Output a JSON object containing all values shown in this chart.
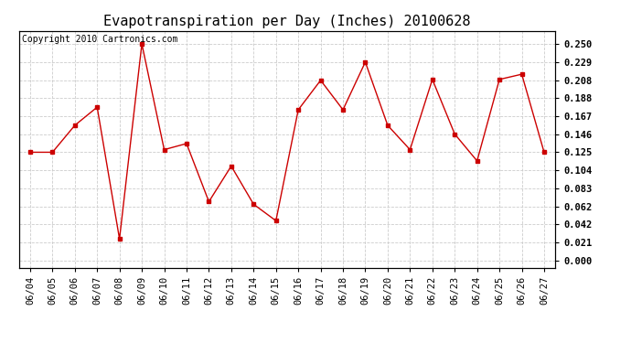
{
  "title": "Evapotranspiration per Day (Inches) 20100628",
  "copyright_text": "Copyright 2010 Cartronics.com",
  "dates": [
    "06/04",
    "06/05",
    "06/06",
    "06/07",
    "06/08",
    "06/09",
    "06/10",
    "06/11",
    "06/12",
    "06/13",
    "06/14",
    "06/15",
    "06/16",
    "06/17",
    "06/18",
    "06/19",
    "06/20",
    "06/21",
    "06/22",
    "06/23",
    "06/24",
    "06/25",
    "06/26",
    "06/27"
  ],
  "values": [
    0.125,
    0.125,
    0.156,
    0.177,
    0.025,
    0.25,
    0.128,
    0.135,
    0.068,
    0.109,
    0.065,
    0.046,
    0.174,
    0.208,
    0.174,
    0.229,
    0.156,
    0.128,
    0.209,
    0.146,
    0.115,
    0.209,
    0.215,
    0.125
  ],
  "line_color": "#cc0000",
  "marker": "s",
  "marker_size": 3,
  "grid_color": "#cccccc",
  "background_color": "#ffffff",
  "yticks": [
    0.0,
    0.021,
    0.042,
    0.062,
    0.083,
    0.104,
    0.125,
    0.146,
    0.167,
    0.188,
    0.208,
    0.229,
    0.25
  ],
  "ylim": [
    -0.008,
    0.265
  ],
  "title_fontsize": 11,
  "copyright_fontsize": 7,
  "tick_fontsize": 7.5
}
